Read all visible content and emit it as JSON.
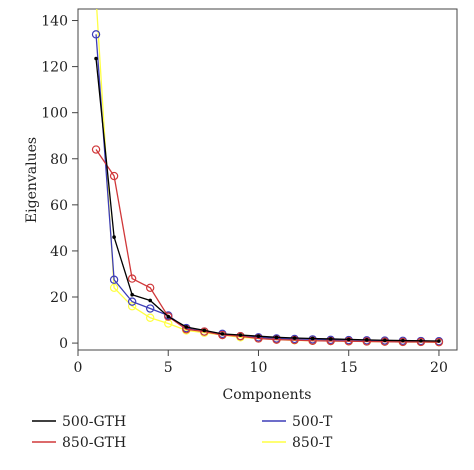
{
  "chart_data": {
    "type": "line",
    "xlabel": "Components",
    "ylabel": "Eigenvalues",
    "xlim": [
      0,
      21
    ],
    "ylim": [
      -3,
      145
    ],
    "xticks": [
      0,
      5,
      10,
      15,
      20
    ],
    "yticks": [
      0,
      20,
      40,
      60,
      80,
      100,
      120,
      140
    ],
    "grid": false,
    "legend_placement": "bottom",
    "series": [
      {
        "name": "500-GTH",
        "color": "#000000",
        "marker": "dot",
        "x": [
          1,
          2,
          3,
          4,
          5,
          6,
          7,
          8,
          9,
          10,
          11,
          12,
          13,
          14,
          15,
          16,
          17,
          18,
          19,
          20
        ],
        "y": [
          123.5,
          46,
          21,
          18.5,
          11.5,
          7,
          5.5,
          4,
          3.5,
          3,
          2.5,
          2.2,
          2,
          1.8,
          1.6,
          1.4,
          1.2,
          1.1,
          1,
          0.9
        ]
      },
      {
        "name": "850-GTH",
        "color": "#d0383a",
        "marker": "circle",
        "x": [
          1,
          2,
          3,
          4,
          5,
          6,
          7,
          8,
          9,
          10,
          11,
          12,
          13,
          14,
          15,
          16,
          17,
          18,
          19,
          20
        ],
        "y": [
          84,
          72.5,
          28,
          24,
          11.5,
          6,
          5,
          3.5,
          3,
          2,
          1.5,
          1.3,
          1,
          0.9,
          0.8,
          0.7,
          0.6,
          0.5,
          0.5,
          0.4
        ]
      },
      {
        "name": "500-T",
        "color": "#3d3db8",
        "marker": "circle",
        "x": [
          1,
          2,
          3,
          4,
          5,
          6,
          7,
          8,
          9,
          10,
          11,
          12,
          13,
          14,
          15,
          16,
          17,
          18,
          19,
          20
        ],
        "y": [
          134,
          27.5,
          18,
          15,
          12,
          6.5,
          5,
          4,
          3,
          2.5,
          2,
          1.8,
          1.6,
          1.4,
          1.3,
          1.2,
          1.1,
          1,
          0.9,
          0.8
        ]
      },
      {
        "name": "850-T",
        "color": "#ffff44",
        "marker": "circle",
        "x": [
          1,
          2,
          3,
          4,
          5,
          6,
          7,
          8,
          9,
          10,
          11,
          12,
          13,
          14,
          15,
          16,
          17,
          18,
          19,
          20
        ],
        "y": [
          150,
          24,
          16,
          11,
          8.5,
          5.5,
          4.5,
          3.5,
          2.5,
          2,
          1.5,
          1.2,
          1,
          0.9,
          0.8,
          0.7,
          0.6,
          0.5,
          0.5,
          0.4
        ]
      }
    ]
  }
}
